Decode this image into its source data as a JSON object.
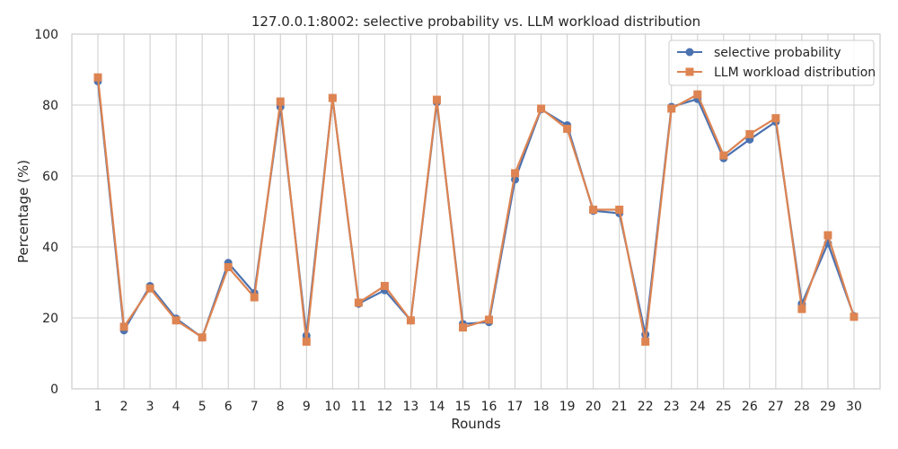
{
  "chart_data": {
    "type": "line",
    "title": "127.0.0.1:8002: selective probability vs. LLM workload distribution",
    "xlabel": "Rounds",
    "ylabel": "Percentage (%)",
    "ylim": [
      0,
      100
    ],
    "yticks": [
      0,
      20,
      40,
      60,
      80,
      100
    ],
    "grid": true,
    "legend_position": "top-right",
    "x": [
      1,
      2,
      3,
      4,
      5,
      6,
      7,
      8,
      9,
      10,
      11,
      12,
      13,
      14,
      15,
      16,
      17,
      18,
      19,
      20,
      21,
      22,
      23,
      24,
      25,
      26,
      27,
      28,
      29,
      30
    ],
    "series": [
      {
        "name": "selective probability",
        "color": "#4c72b0",
        "marker": "circle",
        "values": [
          86.7,
          16.5,
          29.0,
          19.8,
          14.5,
          35.5,
          27.0,
          79.5,
          15.0,
          82.0,
          24.0,
          27.8,
          19.3,
          80.8,
          18.3,
          18.8,
          59.0,
          78.8,
          74.3,
          50.2,
          49.5,
          15.3,
          79.5,
          81.7,
          65.0,
          70.3,
          75.3,
          24.0,
          41.0,
          20.5
        ]
      },
      {
        "name": "LLM workload distribution",
        "color": "#dd8452",
        "marker": "square",
        "values": [
          87.8,
          17.5,
          28.3,
          19.3,
          14.5,
          34.3,
          25.8,
          81.0,
          13.3,
          82.0,
          24.3,
          29.0,
          19.3,
          81.5,
          17.3,
          19.5,
          60.8,
          79.0,
          73.3,
          50.5,
          50.5,
          13.3,
          79.0,
          83.0,
          65.8,
          71.8,
          76.3,
          22.5,
          43.3,
          20.3
        ]
      }
    ]
  }
}
